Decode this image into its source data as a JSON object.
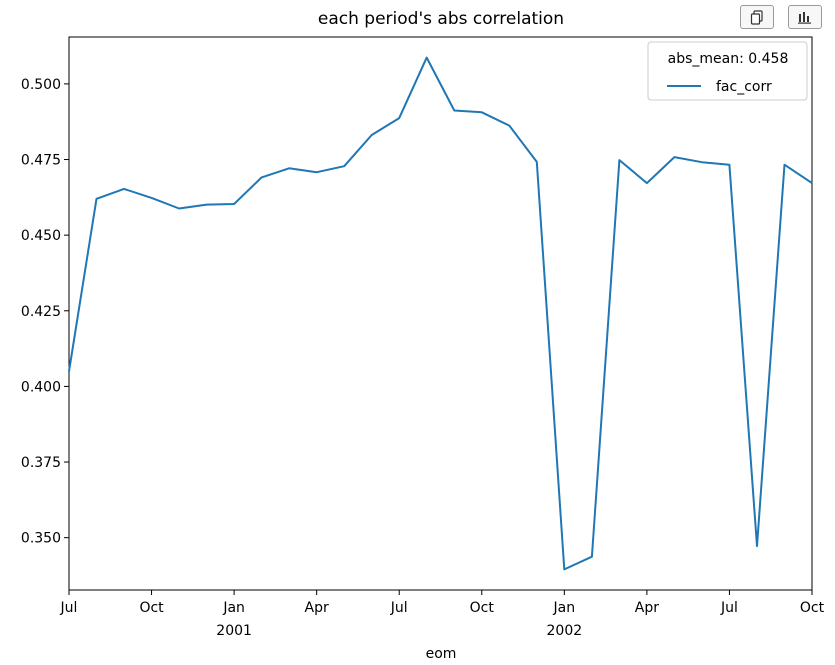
{
  "toolbar": {
    "copy_icon": "copy-icon",
    "chart_icon": "bar-chart-icon"
  },
  "chart_data": {
    "type": "line",
    "title": "each period's abs correlation",
    "xlabel": "eom",
    "ylabel": "",
    "x": [
      "2000-07",
      "2000-08",
      "2000-09",
      "2000-10",
      "2000-11",
      "2000-12",
      "2001-01",
      "2001-02",
      "2001-03",
      "2001-04",
      "2001-05",
      "2001-06",
      "2001-07",
      "2001-08",
      "2001-09",
      "2001-10",
      "2001-11",
      "2001-12",
      "2002-01",
      "2002-02",
      "2002-03",
      "2002-04",
      "2002-05",
      "2002-06",
      "2002-07",
      "2002-08",
      "2002-09",
      "2002-10"
    ],
    "series": [
      {
        "name": "fac_corr",
        "color": "#1f77b4",
        "values": [
          0.405,
          0.462,
          0.4653,
          0.4623,
          0.4588,
          0.4601,
          0.4603,
          0.4691,
          0.4721,
          0.4708,
          0.4728,
          0.4831,
          0.4887,
          0.5087,
          0.4912,
          0.4906,
          0.4862,
          0.4742,
          0.3395,
          0.3437,
          0.4748,
          0.4672,
          0.4758,
          0.4741,
          0.4733,
          0.3472,
          0.4733,
          0.4672
        ]
      }
    ],
    "xticks": [
      {
        "x": "2000-07",
        "label": "Jul",
        "sublabel": ""
      },
      {
        "x": "2000-10",
        "label": "Oct",
        "sublabel": ""
      },
      {
        "x": "2001-01",
        "label": "Jan",
        "sublabel": "2001"
      },
      {
        "x": "2001-04",
        "label": "Apr",
        "sublabel": ""
      },
      {
        "x": "2001-07",
        "label": "Jul",
        "sublabel": ""
      },
      {
        "x": "2001-10",
        "label": "Oct",
        "sublabel": ""
      },
      {
        "x": "2002-01",
        "label": "Jan",
        "sublabel": "2002"
      },
      {
        "x": "2002-04",
        "label": "Apr",
        "sublabel": ""
      },
      {
        "x": "2002-07",
        "label": "Jul",
        "sublabel": ""
      },
      {
        "x": "2002-10",
        "label": "Oct",
        "sublabel": ""
      }
    ],
    "yticks": [
      0.35,
      0.375,
      0.4,
      0.425,
      0.45,
      0.475,
      0.5
    ],
    "ylim": [
      0.3327,
      0.5155
    ],
    "grid": false,
    "legend": {
      "title": "abs_mean: 0.458",
      "placement": "top-right",
      "entries": [
        "fac_corr"
      ]
    }
  }
}
